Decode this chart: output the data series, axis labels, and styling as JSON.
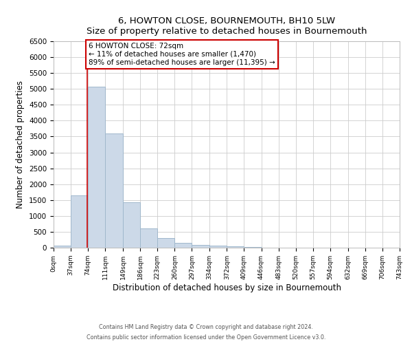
{
  "title": "6, HOWTON CLOSE, BOURNEMOUTH, BH10 5LW",
  "subtitle": "Size of property relative to detached houses in Bournemouth",
  "xlabel": "Distribution of detached houses by size in Bournemouth",
  "ylabel": "Number of detached properties",
  "bar_edges": [
    0,
    37,
    74,
    111,
    149,
    186,
    223,
    260,
    297,
    334,
    372,
    409,
    446,
    483,
    520,
    557,
    594,
    632,
    669,
    706,
    743
  ],
  "bar_heights": [
    75,
    1650,
    5080,
    3600,
    1430,
    610,
    305,
    150,
    90,
    55,
    40,
    30,
    0,
    0,
    0,
    0,
    0,
    0,
    0,
    0
  ],
  "bar_color": "#ccd9e8",
  "bar_edgecolor": "#a0b8cc",
  "marker_x": 72,
  "marker_color": "#cc0000",
  "ylim": [
    0,
    6500
  ],
  "xlim": [
    0,
    743
  ],
  "annotation_title": "6 HOWTON CLOSE: 72sqm",
  "annotation_line1": "← 11% of detached houses are smaller (1,470)",
  "annotation_line2": "89% of semi-detached houses are larger (11,395) →",
  "annotation_box_color": "#cc0000",
  "footer1": "Contains HM Land Registry data © Crown copyright and database right 2024.",
  "footer2": "Contains public sector information licensed under the Open Government Licence v3.0.",
  "tick_labels": [
    "0sqm",
    "37sqm",
    "74sqm",
    "111sqm",
    "149sqm",
    "186sqm",
    "223sqm",
    "260sqm",
    "297sqm",
    "334sqm",
    "372sqm",
    "409sqm",
    "446sqm",
    "483sqm",
    "520sqm",
    "557sqm",
    "594sqm",
    "632sqm",
    "669sqm",
    "706sqm",
    "743sqm"
  ],
  "yticks": [
    0,
    500,
    1000,
    1500,
    2000,
    2500,
    3000,
    3500,
    4000,
    4500,
    5000,
    5500,
    6000,
    6500
  ]
}
